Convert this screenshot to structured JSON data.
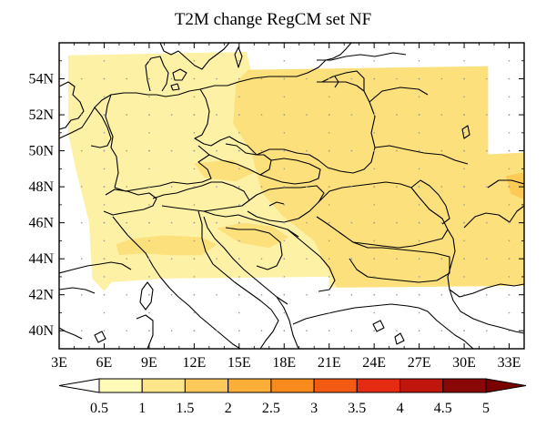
{
  "title": "T2M change RegCM set NF",
  "map": {
    "lon_range": [
      3,
      34
    ],
    "lat_range": [
      39,
      56
    ],
    "lon_ticks": [
      "3E",
      "6E",
      "9E",
      "12E",
      "15E",
      "18E",
      "21E",
      "24E",
      "27E",
      "30E",
      "33E"
    ],
    "lat_ticks": [
      "40N",
      "42N",
      "44N",
      "46N",
      "48N",
      "50N",
      "52N",
      "54N"
    ],
    "field_colors": {
      "light": "#fdf1a6",
      "medium": "#fbe07c",
      "strong": "#fdca55"
    }
  },
  "colorbar": {
    "labels": [
      "0.5",
      "1",
      "1.5",
      "2",
      "2.5",
      "3",
      "3.5",
      "4",
      "4.5",
      "5"
    ],
    "colors": [
      "#ffffff",
      "#fffbb9",
      "#fde68a",
      "#fcc95a",
      "#fbae38",
      "#f98a1c",
      "#f45b12",
      "#e52c12",
      "#c0150c",
      "#8a0707",
      "#7a0000"
    ]
  }
}
